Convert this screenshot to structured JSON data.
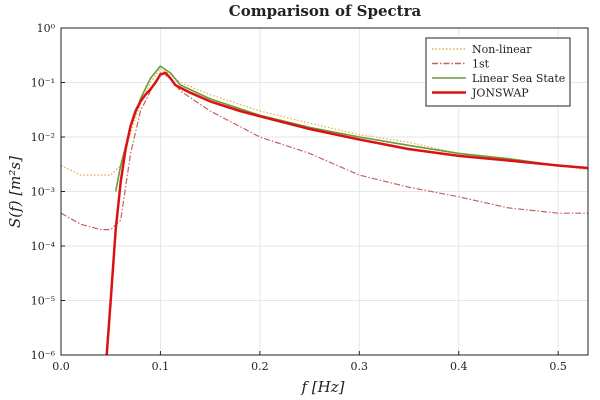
{
  "chart_data": {
    "type": "line",
    "title": "Comparison of Spectra",
    "xlabel": "f [Hz]",
    "ylabel": "S(f) [m²s]",
    "xlim": [
      0.0,
      0.53
    ],
    "ylim": [
      1e-06,
      1
    ],
    "yscale": "log",
    "grid": true,
    "legend_position": "top-right",
    "x_ticks": [
      0.0,
      0.1,
      0.2,
      0.3,
      0.4,
      0.5
    ],
    "x_tick_labels": [
      "0.0",
      "0.1",
      "0.2",
      "0.3",
      "0.4",
      "0.5"
    ],
    "y_ticks": [
      1e-06,
      1e-05,
      0.0001,
      0.001,
      0.01,
      0.1,
      1
    ],
    "y_tick_labels": [
      "10⁻⁶",
      "10⁻⁵",
      "10⁻⁴",
      "10⁻³",
      "10⁻²",
      "10⁻¹",
      "10⁰"
    ],
    "series": [
      {
        "name": "Non-linear",
        "color": "#e0b04a",
        "style": "dotted",
        "x": [
          0.0,
          0.02,
          0.04,
          0.05,
          0.06,
          0.07,
          0.08,
          0.09,
          0.1,
          0.11,
          0.12,
          0.15,
          0.2,
          0.25,
          0.3,
          0.35,
          0.4,
          0.45,
          0.5,
          0.53
        ],
        "y": [
          0.003,
          0.002,
          0.002,
          0.002,
          0.003,
          0.012,
          0.04,
          0.1,
          0.18,
          0.14,
          0.1,
          0.06,
          0.03,
          0.018,
          0.011,
          0.008,
          0.005,
          0.004,
          0.003,
          0.0025
        ]
      },
      {
        "name": "1st",
        "color": "#c86060",
        "style": "dashdot",
        "x": [
          0.0,
          0.02,
          0.04,
          0.05,
          0.06,
          0.07,
          0.08,
          0.09,
          0.1,
          0.11,
          0.12,
          0.15,
          0.2,
          0.25,
          0.3,
          0.35,
          0.4,
          0.45,
          0.5,
          0.53
        ],
        "y": [
          0.0004,
          0.00025,
          0.0002,
          0.0002,
          0.0003,
          0.005,
          0.03,
          0.07,
          0.15,
          0.12,
          0.07,
          0.03,
          0.01,
          0.005,
          0.002,
          0.0012,
          0.0008,
          0.0005,
          0.0004,
          0.0004
        ]
      },
      {
        "name": "Linear Sea State",
        "color": "#6a9a3a",
        "style": "solid",
        "x": [
          0.055,
          0.06,
          0.07,
          0.08,
          0.09,
          0.1,
          0.11,
          0.12,
          0.15,
          0.2,
          0.25,
          0.3,
          0.35,
          0.4,
          0.45,
          0.5,
          0.53
        ],
        "y": [
          0.001,
          0.003,
          0.015,
          0.05,
          0.12,
          0.2,
          0.15,
          0.09,
          0.05,
          0.025,
          0.015,
          0.01,
          0.007,
          0.005,
          0.004,
          0.003,
          0.0027
        ]
      },
      {
        "name": "JONSWAP",
        "color": "#dd1111",
        "style": "solid",
        "x": [
          0.046,
          0.05,
          0.055,
          0.06,
          0.065,
          0.07,
          0.075,
          0.08,
          0.085,
          0.09,
          0.095,
          0.1,
          0.105,
          0.11,
          0.115,
          0.12,
          0.13,
          0.15,
          0.18,
          0.2,
          0.25,
          0.3,
          0.35,
          0.4,
          0.45,
          0.5,
          0.53
        ],
        "y": [
          1e-06,
          1e-05,
          0.0002,
          0.0015,
          0.006,
          0.016,
          0.03,
          0.045,
          0.06,
          0.075,
          0.1,
          0.14,
          0.15,
          0.12,
          0.09,
          0.08,
          0.065,
          0.045,
          0.03,
          0.024,
          0.014,
          0.009,
          0.006,
          0.0045,
          0.0037,
          0.003,
          0.0027
        ]
      }
    ],
    "legend": [
      {
        "label": "Non-linear",
        "color": "#e0b04a",
        "style": "dotted"
      },
      {
        "label": "1st",
        "color": "#c86060",
        "style": "dashdot"
      },
      {
        "label": "Linear Sea State",
        "color": "#6a9a3a",
        "style": "solid"
      },
      {
        "label": "JONSWAP",
        "color": "#dd1111",
        "style": "solid"
      }
    ]
  }
}
